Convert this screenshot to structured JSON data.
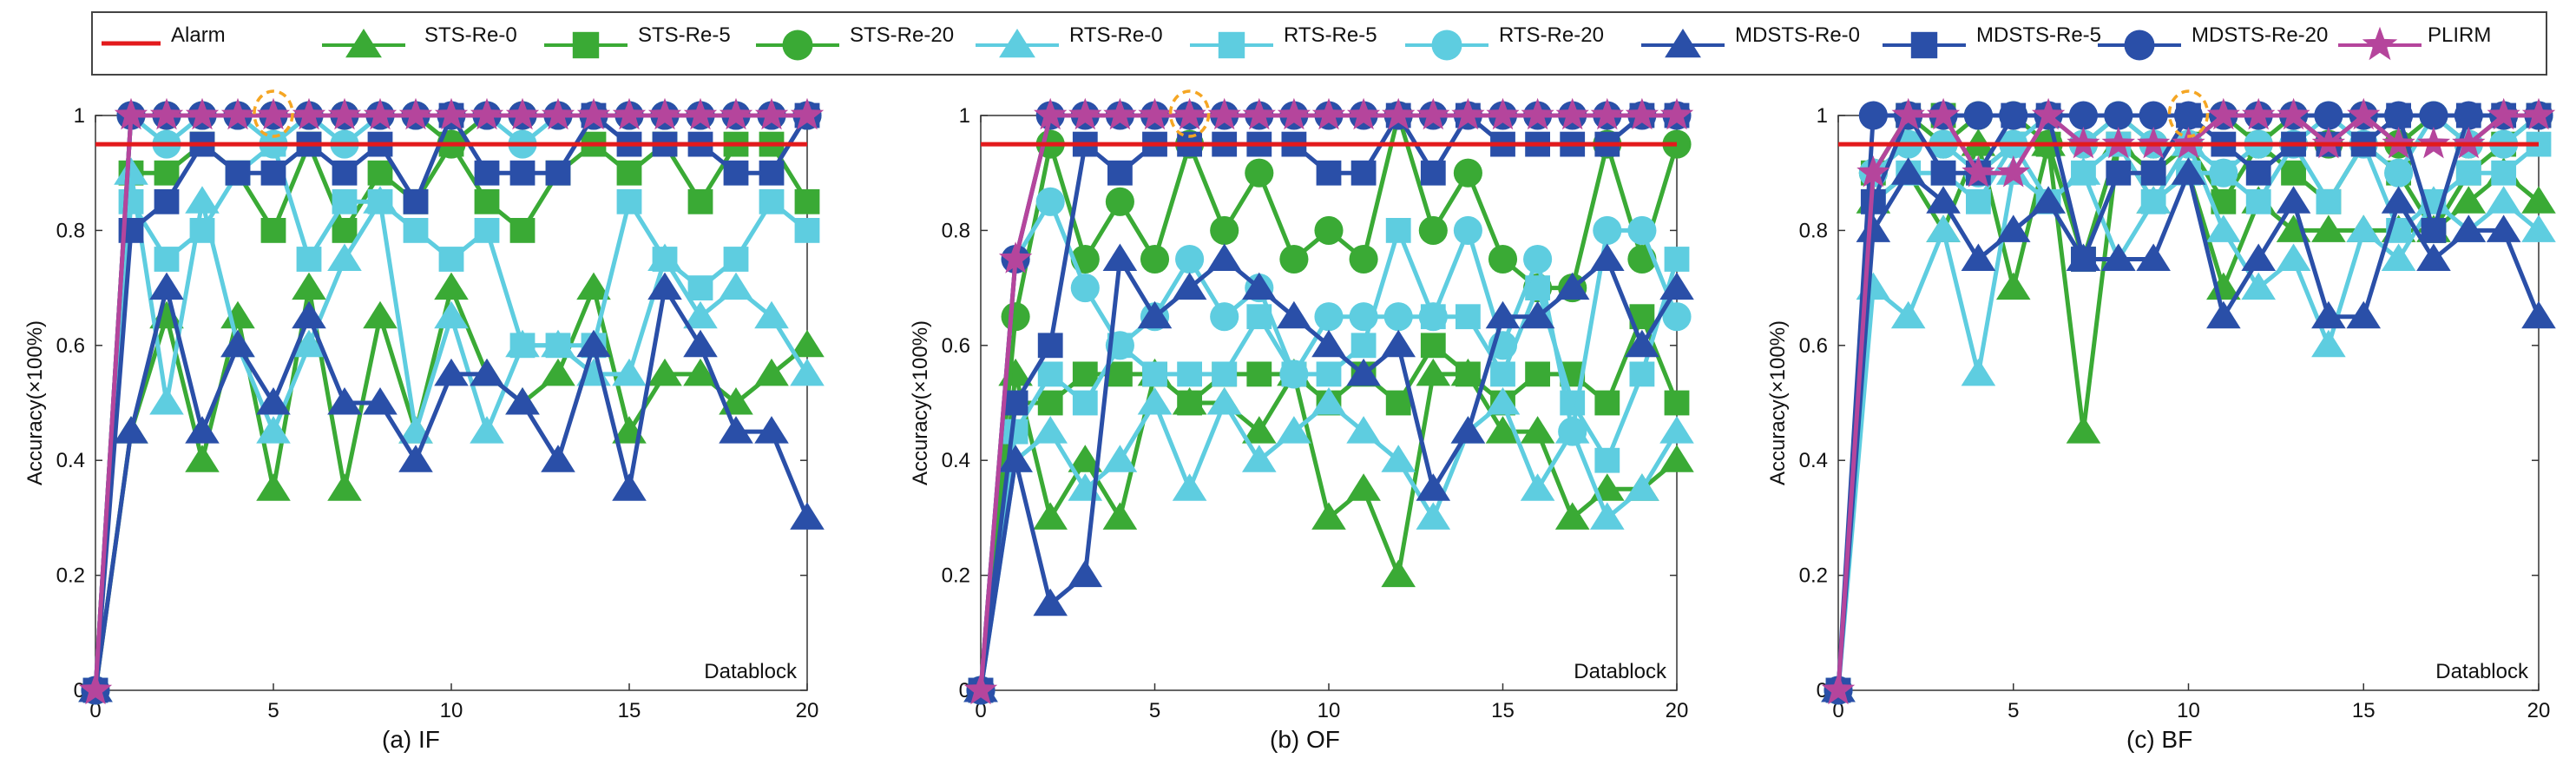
{
  "legend": {
    "entries": [
      {
        "label": "Alarm",
        "color": "#e31a1c",
        "marker": "none"
      },
      {
        "label": "STS-Re-0",
        "color": "#3aaa35",
        "marker": "triangle"
      },
      {
        "label": "STS-Re-5",
        "color": "#3aaa35",
        "marker": "square"
      },
      {
        "label": "STS-Re-20",
        "color": "#3aaa35",
        "marker": "circle"
      },
      {
        "label": "RTS-Re-0",
        "color": "#5ecde0",
        "marker": "triangle"
      },
      {
        "label": "RTS-Re-5",
        "color": "#5ecde0",
        "marker": "square"
      },
      {
        "label": "RTS-Re-20",
        "color": "#5ecde0",
        "marker": "circle"
      },
      {
        "label": "MDSTS-Re-0",
        "color": "#2a4fa8",
        "marker": "triangle"
      },
      {
        "label": "MDSTS-Re-5",
        "color": "#2a4fa8",
        "marker": "square"
      },
      {
        "label": "MDSTS-Re-20",
        "color": "#2a4fa8",
        "marker": "circle"
      },
      {
        "label": "PLIRM",
        "color": "#b5459c",
        "marker": "star"
      }
    ]
  },
  "chart_data": [
    {
      "type": "line",
      "caption": "(a) IF",
      "xlabel": "Datablock",
      "ylabel": "Accuracy(×100%)",
      "xlim": [
        0,
        20
      ],
      "ylim": [
        0,
        1
      ],
      "xticks": [
        0,
        5,
        10,
        15,
        20
      ],
      "yticks": [
        0,
        0.2,
        0.4,
        0.6,
        0.8,
        1
      ],
      "alarm": 0.95,
      "highlight_x": 5,
      "x": [
        0,
        1,
        2,
        3,
        4,
        5,
        6,
        7,
        8,
        9,
        10,
        11,
        12,
        13,
        14,
        15,
        16,
        17,
        18,
        19,
        20
      ],
      "series": [
        {
          "name": "STS-Re-0",
          "values": [
            0,
            0.45,
            0.65,
            0.4,
            0.65,
            0.35,
            0.7,
            0.35,
            0.65,
            0.45,
            0.7,
            0.55,
            0.5,
            0.55,
            0.7,
            0.45,
            0.55,
            0.55,
            0.5,
            0.55,
            0.6
          ]
        },
        {
          "name": "STS-Re-5",
          "values": [
            0,
            0.9,
            0.9,
            0.95,
            0.9,
            0.8,
            0.95,
            0.8,
            0.9,
            0.85,
            0.95,
            0.85,
            0.8,
            0.9,
            0.95,
            0.9,
            0.95,
            0.85,
            0.95,
            0.95,
            0.85
          ]
        },
        {
          "name": "STS-Re-20",
          "values": [
            0,
            1,
            1,
            1,
            1,
            1,
            1,
            1,
            1,
            1,
            0.95,
            1,
            1,
            1,
            1,
            1,
            1,
            1,
            1,
            1,
            1
          ]
        },
        {
          "name": "RTS-Re-0",
          "values": [
            0,
            0.9,
            0.5,
            0.85,
            0.6,
            0.45,
            0.6,
            0.75,
            0.85,
            0.45,
            0.65,
            0.45,
            0.6,
            0.6,
            0.55,
            0.55,
            0.75,
            0.65,
            0.7,
            0.65,
            0.55
          ]
        },
        {
          "name": "RTS-Re-5",
          "values": [
            0,
            0.85,
            0.75,
            0.8,
            0.9,
            0.95,
            0.75,
            0.85,
            0.85,
            0.8,
            0.75,
            0.8,
            0.6,
            0.6,
            0.6,
            0.85,
            0.75,
            0.7,
            0.75,
            0.85,
            0.8
          ]
        },
        {
          "name": "RTS-Re-20",
          "values": [
            0,
            1,
            0.95,
            1,
            1,
            0.95,
            1,
            0.95,
            1,
            1,
            1,
            1,
            0.95,
            1,
            1,
            1,
            1,
            1,
            1,
            1,
            1
          ]
        },
        {
          "name": "MDSTS-Re-0",
          "values": [
            0,
            0.45,
            0.7,
            0.45,
            0.6,
            0.5,
            0.65,
            0.5,
            0.5,
            0.4,
            0.55,
            0.55,
            0.5,
            0.4,
            0.6,
            0.35,
            0.7,
            0.6,
            0.45,
            0.45,
            0.3
          ]
        },
        {
          "name": "MDSTS-Re-5",
          "values": [
            0,
            0.8,
            0.85,
            0.95,
            0.9,
            0.9,
            0.95,
            0.9,
            0.95,
            0.85,
            1,
            0.9,
            0.9,
            0.9,
            1,
            0.95,
            0.95,
            0.95,
            0.9,
            0.9,
            1
          ]
        },
        {
          "name": "MDSTS-Re-20",
          "values": [
            0,
            1,
            1,
            1,
            1,
            1,
            1,
            1,
            1,
            1,
            1,
            1,
            1,
            1,
            1,
            1,
            1,
            1,
            1,
            1,
            1
          ]
        },
        {
          "name": "PLIRM",
          "values": [
            0,
            1,
            1,
            1,
            1,
            1,
            1,
            1,
            1,
            1,
            1,
            1,
            1,
            1,
            1,
            1,
            1,
            1,
            1,
            1,
            1
          ]
        }
      ]
    },
    {
      "type": "line",
      "caption": "(b) OF",
      "xlabel": "Datablock",
      "ylabel": "Accuracy(×100%)",
      "xlim": [
        0,
        20
      ],
      "ylim": [
        0,
        1
      ],
      "xticks": [
        0,
        5,
        10,
        15,
        20
      ],
      "yticks": [
        0,
        0.2,
        0.4,
        0.6,
        0.8,
        1
      ],
      "alarm": 0.95,
      "highlight_x": 6,
      "x": [
        0,
        1,
        2,
        3,
        4,
        5,
        6,
        7,
        8,
        9,
        10,
        11,
        12,
        13,
        14,
        15,
        16,
        17,
        18,
        19,
        20
      ],
      "series": [
        {
          "name": "STS-Re-0",
          "values": [
            0,
            0.55,
            0.3,
            0.4,
            0.3,
            0.55,
            0.5,
            0.5,
            0.45,
            0.55,
            0.3,
            0.35,
            0.2,
            0.55,
            0.55,
            0.45,
            0.45,
            0.3,
            0.35,
            0.35,
            0.4
          ]
        },
        {
          "name": "STS-Re-5",
          "values": [
            0,
            0.5,
            0.5,
            0.55,
            0.55,
            0.55,
            0.5,
            0.55,
            0.55,
            0.55,
            0.5,
            0.55,
            0.5,
            0.6,
            0.55,
            0.5,
            0.55,
            0.55,
            0.5,
            0.65,
            0.5
          ]
        },
        {
          "name": "STS-Re-20",
          "values": [
            0,
            0.65,
            0.95,
            0.75,
            0.85,
            0.75,
            0.95,
            0.8,
            0.9,
            0.75,
            0.8,
            0.75,
            1,
            0.8,
            0.9,
            0.75,
            0.7,
            0.7,
            0.95,
            0.75,
            0.95
          ]
        },
        {
          "name": "RTS-Re-0",
          "values": [
            0,
            0.4,
            0.45,
            0.35,
            0.4,
            0.5,
            0.35,
            0.5,
            0.4,
            0.45,
            0.5,
            0.45,
            0.4,
            0.3,
            0.45,
            0.5,
            0.35,
            0.45,
            0.3,
            0.35,
            0.45
          ]
        },
        {
          "name": "RTS-Re-5",
          "values": [
            0,
            0.45,
            0.55,
            0.5,
            0.6,
            0.55,
            0.55,
            0.55,
            0.65,
            0.55,
            0.55,
            0.6,
            0.8,
            0.65,
            0.65,
            0.55,
            0.7,
            0.5,
            0.4,
            0.55,
            0.75
          ]
        },
        {
          "name": "RTS-Re-20",
          "values": [
            0,
            0.75,
            0.85,
            0.7,
            0.6,
            0.65,
            0.75,
            0.65,
            0.7,
            0.55,
            0.65,
            0.65,
            0.65,
            0.65,
            0.8,
            0.6,
            0.75,
            0.45,
            0.8,
            0.8,
            0.65
          ]
        },
        {
          "name": "MDSTS-Re-0",
          "values": [
            0,
            0.4,
            0.15,
            0.2,
            0.75,
            0.65,
            0.7,
            0.75,
            0.7,
            0.65,
            0.6,
            0.55,
            0.6,
            0.35,
            0.45,
            0.65,
            0.65,
            0.7,
            0.75,
            0.6,
            0.7
          ]
        },
        {
          "name": "MDSTS-Re-5",
          "values": [
            0,
            0.5,
            0.6,
            0.95,
            0.9,
            0.95,
            0.95,
            0.95,
            0.95,
            0.95,
            0.9,
            0.9,
            1,
            0.9,
            1,
            0.95,
            0.95,
            0.95,
            0.95,
            1,
            1
          ]
        },
        {
          "name": "MDSTS-Re-20",
          "values": [
            0,
            0.75,
            1,
            1,
            1,
            1,
            1,
            1,
            1,
            1,
            1,
            1,
            1,
            1,
            1,
            1,
            1,
            1,
            1,
            1,
            1
          ]
        },
        {
          "name": "PLIRM",
          "values": [
            0,
            0.75,
            1,
            1,
            1,
            1,
            1,
            1,
            1,
            1,
            1,
            1,
            1,
            1,
            1,
            1,
            1,
            1,
            1,
            1,
            1
          ]
        }
      ]
    },
    {
      "type": "line",
      "caption": "(c) BF",
      "xlabel": "Datablock",
      "ylabel": "Accuracy(×100%)",
      "xlim": [
        0,
        20
      ],
      "ylim": [
        0,
        1
      ],
      "xticks": [
        0,
        5,
        10,
        15,
        20
      ],
      "yticks": [
        0,
        0.2,
        0.4,
        0.6,
        0.8,
        1
      ],
      "alarm": 0.95,
      "highlight_x": 10,
      "x": [
        0,
        1,
        2,
        3,
        4,
        5,
        6,
        7,
        8,
        9,
        10,
        11,
        12,
        13,
        14,
        15,
        16,
        17,
        18,
        19,
        20
      ],
      "series": [
        {
          "name": "STS-Re-0",
          "values": [
            0,
            0.85,
            0.9,
            0.8,
            0.95,
            0.7,
            0.95,
            0.45,
            0.95,
            0.85,
            0.9,
            0.7,
            0.85,
            0.8,
            0.8,
            0.8,
            0.8,
            0.8,
            0.85,
            0.9,
            0.85
          ]
        },
        {
          "name": "STS-Re-5",
          "values": [
            0,
            0.9,
            1,
            1,
            0.9,
            0.95,
            0.95,
            0.75,
            0.95,
            0.9,
            0.95,
            0.85,
            0.95,
            0.9,
            0.85,
            0.95,
            0.9,
            0.8,
            0.9,
            0.95,
            1
          ]
        },
        {
          "name": "STS-Re-20",
          "values": [
            0,
            0.9,
            1,
            0.95,
            1,
            1,
            0.95,
            0.95,
            1,
            0.95,
            0.95,
            1,
            0.95,
            1,
            0.95,
            1,
            0.95,
            1,
            0.95,
            1,
            1
          ]
        },
        {
          "name": "RTS-Re-0",
          "values": [
            0,
            0.7,
            0.65,
            0.8,
            0.55,
            0.9,
            0.85,
            0.9,
            0.75,
            0.85,
            0.95,
            0.8,
            0.7,
            0.75,
            0.6,
            0.8,
            0.75,
            0.85,
            0.8,
            0.85,
            0.8
          ]
        },
        {
          "name": "RTS-Re-5",
          "values": [
            0,
            0.85,
            0.9,
            0.9,
            0.85,
            0.95,
            0.85,
            0.9,
            0.95,
            0.85,
            0.9,
            0.9,
            0.85,
            0.95,
            0.85,
            0.95,
            0.8,
            0.85,
            0.9,
            0.9,
            0.95
          ]
        },
        {
          "name": "RTS-Re-20",
          "values": [
            0,
            0.9,
            0.95,
            0.95,
            0.9,
            0.95,
            1,
            0.95,
            1,
            0.95,
            0.95,
            0.9,
            0.95,
            0.95,
            1,
            0.95,
            0.9,
            1,
            0.95,
            0.95,
            1
          ]
        },
        {
          "name": "MDSTS-Re-0",
          "values": [
            0,
            0.8,
            0.9,
            0.85,
            0.75,
            0.8,
            0.85,
            0.75,
            0.75,
            0.75,
            0.9,
            0.65,
            0.75,
            0.85,
            0.65,
            0.65,
            0.85,
            0.75,
            0.8,
            0.8,
            0.65
          ]
        },
        {
          "name": "MDSTS-Re-5",
          "values": [
            0,
            0.85,
            1,
            0.9,
            0.9,
            1,
            1,
            0.75,
            0.9,
            0.9,
            1,
            0.95,
            0.9,
            0.95,
            0.95,
            0.95,
            1,
            0.8,
            1,
            1,
            1
          ]
        },
        {
          "name": "MDSTS-Re-20",
          "values": [
            0,
            1,
            1,
            1,
            1,
            1,
            1,
            1,
            1,
            1,
            1,
            1,
            1,
            1,
            1,
            1,
            1,
            1,
            1,
            1,
            1
          ]
        },
        {
          "name": "PLIRM",
          "values": [
            0,
            0.9,
            1,
            1,
            0.9,
            0.9,
            1,
            0.95,
            0.95,
            0.95,
            0.95,
            1,
            1,
            1,
            0.95,
            1,
            0.95,
            0.95,
            0.95,
            1,
            1
          ]
        }
      ]
    }
  ]
}
